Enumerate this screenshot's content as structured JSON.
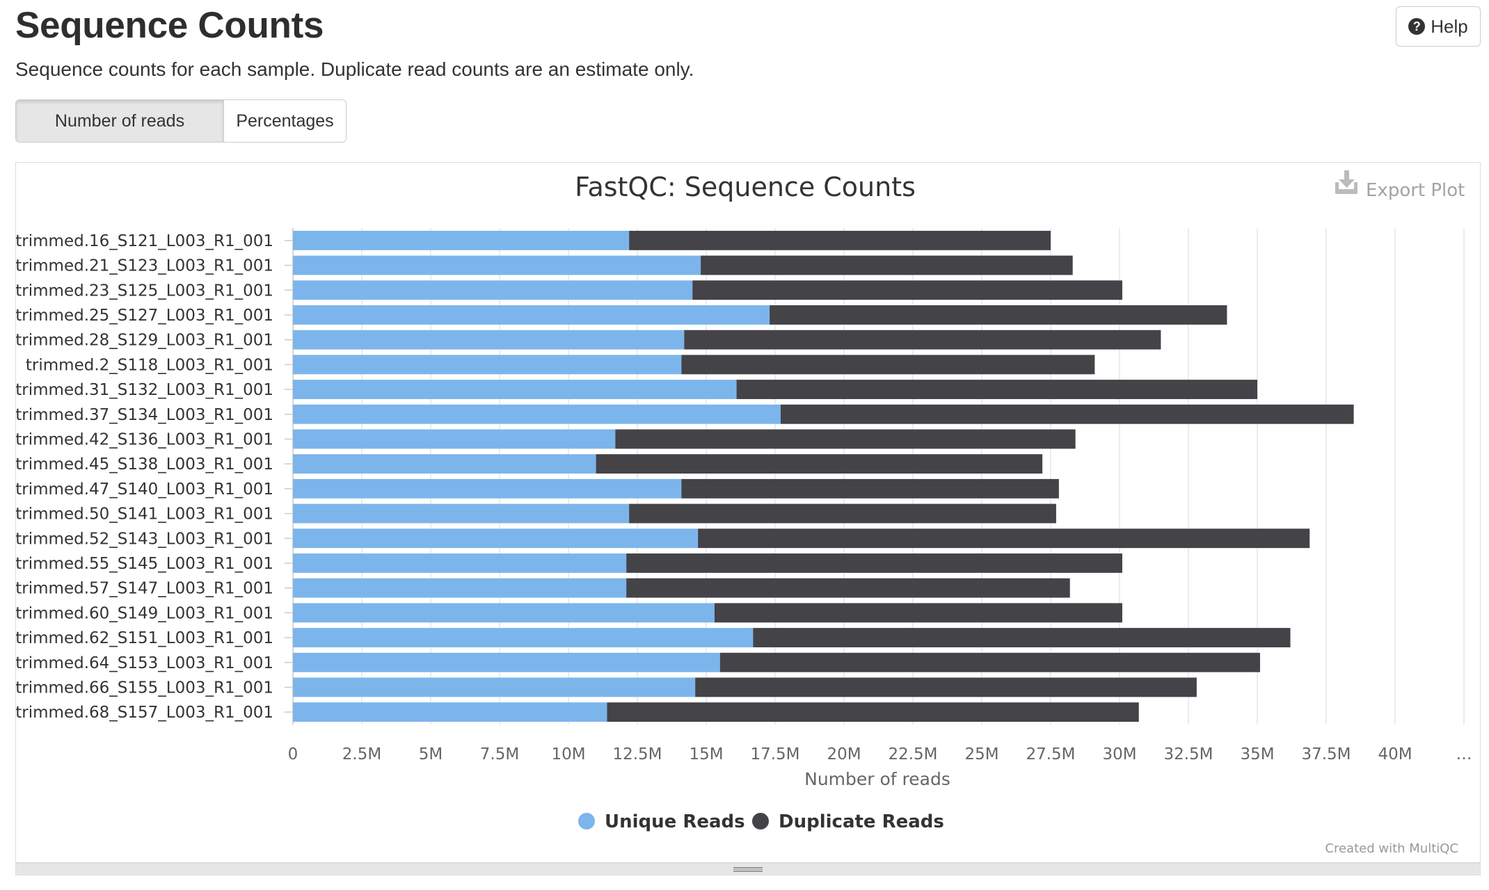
{
  "header": {
    "title": "Sequence Counts",
    "help_label": "Help",
    "description": "Sequence counts for each sample. Duplicate read counts are an estimate only."
  },
  "toggles": [
    {
      "label": "Number of reads",
      "active": true
    },
    {
      "label": "Percentages",
      "active": false
    }
  ],
  "plot": {
    "export_label": "Export Plot",
    "credit": "Created with MultiQC"
  },
  "colors": {
    "unique": "#7cb5ec",
    "duplicate": "#434348"
  },
  "chart_data": {
    "type": "bar",
    "orientation": "horizontal",
    "stacked": true,
    "title": "FastQC: Sequence Counts",
    "xlabel": "Number of reads",
    "ylabel": "",
    "xlim": [
      0,
      42500000
    ],
    "x_ticks": [
      "0",
      "2.5M",
      "5M",
      "7.5M",
      "10M",
      "12.5M",
      "15M",
      "17.5M",
      "20M",
      "22.5M",
      "25M",
      "27.5M",
      "30M",
      "32.5M",
      "35M",
      "37.5M",
      "40M",
      "…"
    ],
    "grid": "vertical",
    "legend_position": "bottom-center",
    "categories": [
      "trimmed.16_S121_L003_R1_001",
      "trimmed.21_S123_L003_R1_001",
      "trimmed.23_S125_L003_R1_001",
      "trimmed.25_S127_L003_R1_001",
      "trimmed.28_S129_L003_R1_001",
      "trimmed.2_S118_L003_R1_001",
      "trimmed.31_S132_L003_R1_001",
      "trimmed.37_S134_L003_R1_001",
      "trimmed.42_S136_L003_R1_001",
      "trimmed.45_S138_L003_R1_001",
      "trimmed.47_S140_L003_R1_001",
      "trimmed.50_S141_L003_R1_001",
      "trimmed.52_S143_L003_R1_001",
      "trimmed.55_S145_L003_R1_001",
      "trimmed.57_S147_L003_R1_001",
      "trimmed.60_S149_L003_R1_001",
      "trimmed.62_S151_L003_R1_001",
      "trimmed.64_S153_L003_R1_001",
      "trimmed.66_S155_L003_R1_001",
      "trimmed.68_S157_L003_R1_001"
    ],
    "series": [
      {
        "name": "Unique Reads",
        "values": [
          12200000,
          14800000,
          14500000,
          17300000,
          14200000,
          14100000,
          16100000,
          17700000,
          11700000,
          11000000,
          14100000,
          12200000,
          14700000,
          12100000,
          12100000,
          15300000,
          16700000,
          15500000,
          14600000,
          11400000
        ]
      },
      {
        "name": "Duplicate Reads",
        "values": [
          15300000,
          13500000,
          15600000,
          16600000,
          17300000,
          15000000,
          18900000,
          20800000,
          16700000,
          16200000,
          13700000,
          15500000,
          22200000,
          18000000,
          16100000,
          14800000,
          19500000,
          19600000,
          18200000,
          19300000
        ]
      }
    ]
  }
}
